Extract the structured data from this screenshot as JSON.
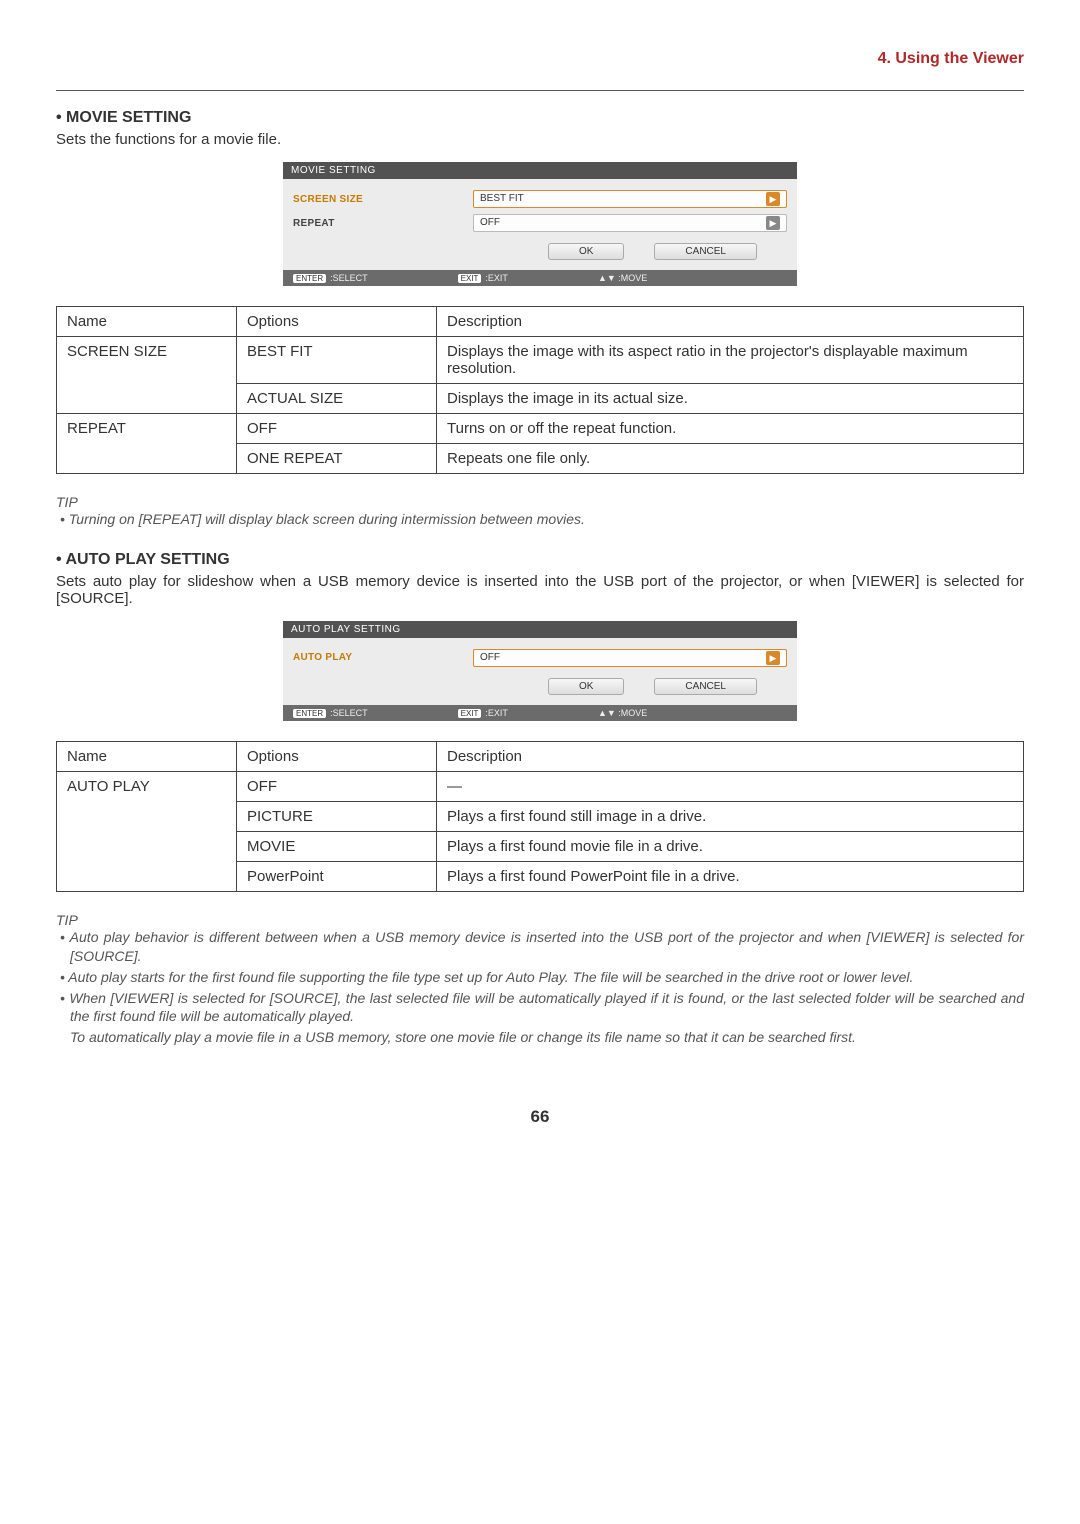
{
  "header": {
    "chapter": "4. Using the Viewer"
  },
  "section1": {
    "title": "• MOVIE SETTING",
    "subtitle": "Sets the functions for a movie file.",
    "dialog": {
      "title": "MOVIE SETTING",
      "rows": [
        {
          "label": "SCREEN SIZE",
          "value": "BEST FIT",
          "selected": true
        },
        {
          "label": "REPEAT",
          "value": "OFF",
          "selected": false
        }
      ],
      "ok": "OK",
      "cancel": "CANCEL",
      "footer": {
        "select": ":SELECT",
        "exit": ":EXIT",
        "move": ":MOVE",
        "enter": "ENTER",
        "exitKey": "EXIT",
        "arrow": "▲▼"
      }
    },
    "table": {
      "head": {
        "name": "Name",
        "options": "Options",
        "desc": "Description"
      },
      "rows": [
        {
          "name": "SCREEN SIZE",
          "opt": "BEST FIT",
          "desc": "Displays the image with its aspect ratio in the projector's displayable maximum resolution."
        },
        {
          "name": "",
          "opt": "ACTUAL SIZE",
          "desc": "Displays the image in its actual size."
        },
        {
          "name": "REPEAT",
          "opt": "OFF",
          "desc": "Turns on or off the repeat function."
        },
        {
          "name": "",
          "opt": "ONE REPEAT",
          "desc": "Repeats one file only."
        }
      ]
    },
    "tip": {
      "head": "TIP",
      "line1": "• Turning on [REPEAT] will display black screen during intermission between movies."
    }
  },
  "section2": {
    "title": "• AUTO PLAY SETTING",
    "subtitle": "Sets auto play for slideshow when a USB memory device is inserted into the USB port of the projector, or when [VIEWER] is selected for [SOURCE].",
    "dialog": {
      "title": "AUTO PLAY SETTING",
      "row": {
        "label": "AUTO PLAY",
        "value": "OFF"
      },
      "ok": "OK",
      "cancel": "CANCEL",
      "footer": {
        "select": ":SELECT",
        "exit": ":EXIT",
        "move": ":MOVE",
        "enter": "ENTER",
        "exitKey": "EXIT",
        "arrow": "▲▼"
      }
    },
    "table": {
      "head": {
        "name": "Name",
        "options": "Options",
        "desc": "Description"
      },
      "rows": [
        {
          "name": "AUTO PLAY",
          "opt": "OFF",
          "desc": "—"
        },
        {
          "name": "",
          "opt": "PICTURE",
          "desc": "Plays a first found still image in a drive."
        },
        {
          "name": "",
          "opt": "MOVIE",
          "desc": "Plays a first found movie file in a drive."
        },
        {
          "name": "",
          "opt": "PowerPoint",
          "desc": "Plays a first found PowerPoint file in a drive."
        }
      ]
    },
    "tip": {
      "head": "TIP",
      "l1": "• Auto play behavior is different between when a USB memory device is inserted into the USB port of the projector and when [VIEWER] is selected for [SOURCE].",
      "l2": "• Auto play starts for the first found file supporting the file type set up for Auto Play. The file will be searched in the drive root or lower level.",
      "l3": "• When [VIEWER] is selected for [SOURCE], the last selected file will be automatically played if it is found, or the last selected folder will be searched and the first found file will be automatically played.",
      "l4": "To automatically play a movie file in a USB memory, store one movie file or change its file name so that it can be searched first."
    }
  },
  "page": "66"
}
